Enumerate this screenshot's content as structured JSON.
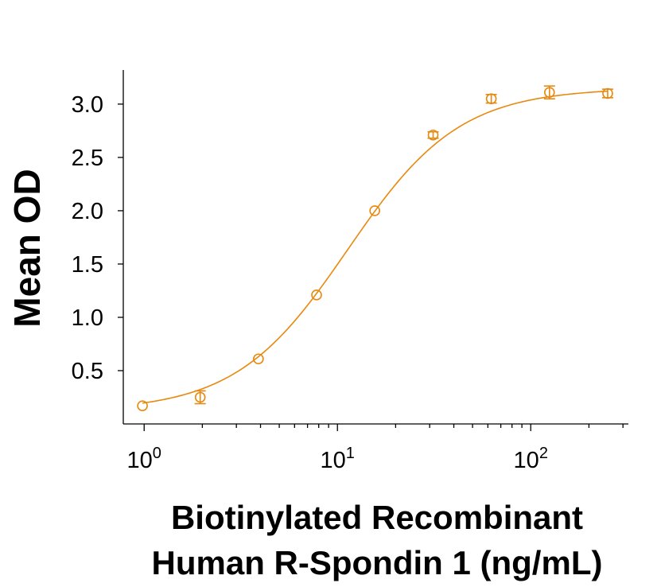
{
  "chart_data": {
    "type": "scatter",
    "title": "",
    "xlabel_lines": [
      "Biotinylated Recombinant",
      "Human R-Spondin 1 (ng/mL)"
    ],
    "ylabel": "Mean OD",
    "xscale": "log",
    "xlim": [
      0.78,
      320
    ],
    "ylim": [
      0.0,
      3.32
    ],
    "x_ticks": [
      {
        "value": 1,
        "base": "10",
        "exp": "0"
      },
      {
        "value": 10,
        "base": "10",
        "exp": "1"
      },
      {
        "value": 100,
        "base": "10",
        "exp": "2"
      }
    ],
    "y_ticks": [
      {
        "value": 0.5,
        "label": "0.5"
      },
      {
        "value": 1.0,
        "label": "1.0"
      },
      {
        "value": 1.5,
        "label": "1.5"
      },
      {
        "value": 2.0,
        "label": "2.0"
      },
      {
        "value": 2.5,
        "label": "2.5"
      },
      {
        "value": 3.0,
        "label": "3.0"
      }
    ],
    "color": "#E8890F",
    "series": [
      {
        "name": "Mean OD",
        "x": [
          0.98,
          1.95,
          3.9,
          7.8,
          15.6,
          31.25,
          62.5,
          125,
          250
        ],
        "y": [
          0.17,
          0.25,
          0.61,
          1.21,
          2.0,
          2.71,
          3.05,
          3.11,
          3.1
        ],
        "error": [
          0.0,
          0.06,
          0.0,
          0.0,
          0.0,
          0.03,
          0.04,
          0.06,
          0.04
        ]
      }
    ],
    "fit": {
      "model": "4PL",
      "bottom": 0.12,
      "top": 3.15,
      "ec50": 11.3,
      "hill": 1.5
    }
  }
}
